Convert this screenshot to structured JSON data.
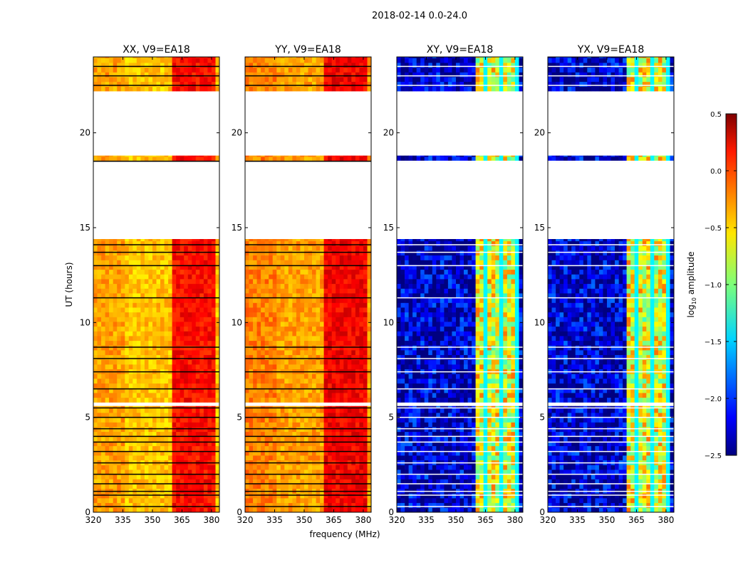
{
  "chart_data": {
    "type": "heatmap",
    "title": "2018-02-14 0.0-24.0",
    "xlabel": "frequency (MHz)",
    "ylabel": "UT (hours)",
    "xlim": [
      320,
      384
    ],
    "ylim": [
      0,
      24
    ],
    "xticks": [
      320,
      335,
      350,
      365,
      380
    ],
    "xtick_labels": [
      "320",
      "335",
      "350",
      "365",
      "380"
    ],
    "yticks": [
      0,
      5,
      10,
      15,
      20
    ],
    "ytick_labels": [
      "0",
      "5",
      "10",
      "15",
      "20"
    ],
    "data_time_ranges_hours": [
      [
        0,
        5.6
      ],
      [
        5.8,
        14.4
      ],
      [
        18.5,
        18.8
      ],
      [
        22.2,
        24
      ]
    ],
    "flagged_hours": [
      0.3,
      0.9,
      1.1,
      1.5,
      2.0,
      2.6,
      3.2,
      3.7,
      4.0,
      4.4,
      5.0,
      5.5,
      6.5,
      7.4,
      8.1,
      8.7,
      11.3,
      13.0,
      13.7,
      14.1,
      18.5,
      22.5,
      23.0,
      23.5
    ],
    "bright_band_mhz": [
      361,
      381
    ],
    "panels": [
      {
        "title": "XX, V9=EA18",
        "base_log_amp": -0.45,
        "band_log_amp": 0.1,
        "noise": 0.15
      },
      {
        "title": "YY, V9=EA18",
        "base_log_amp": -0.35,
        "band_log_amp": 0.15,
        "noise": 0.15
      },
      {
        "title": "XY, V9=EA18",
        "base_log_amp": -2.3,
        "band_log_amp": -0.7,
        "noise": 0.5
      },
      {
        "title": "YX, V9=EA18",
        "base_log_amp": -2.3,
        "band_log_amp": -0.7,
        "noise": 0.5
      }
    ],
    "colorbar": {
      "label": "log10 amplitude",
      "colormap": "jet",
      "range": [
        -2.5,
        0.5
      ],
      "ticks": [
        0.5,
        0.0,
        -0.5,
        -1.0,
        -1.5,
        -2.0,
        -2.5
      ],
      "tick_labels": [
        "0.5",
        "0.0",
        "−0.5",
        "−1.0",
        "−1.5",
        "−2.0",
        "−2.5"
      ]
    }
  }
}
